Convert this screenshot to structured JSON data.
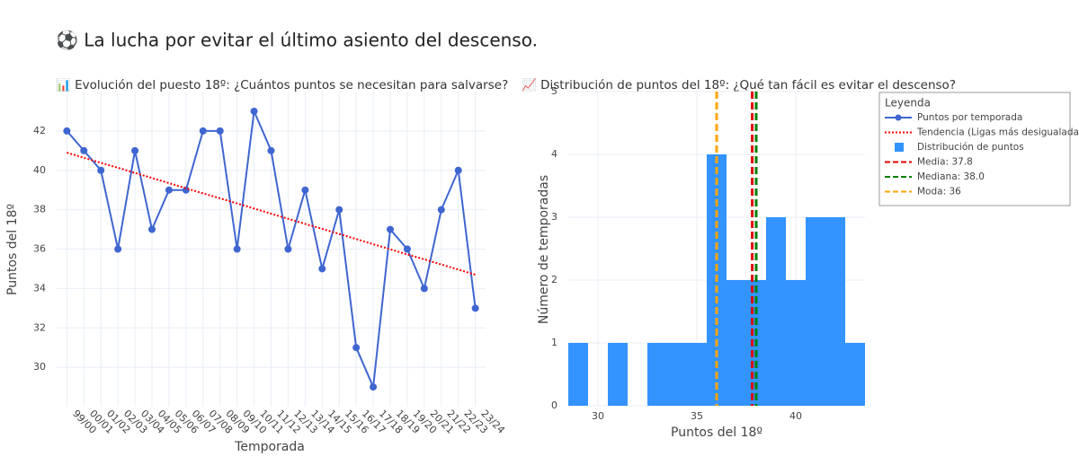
{
  "title": "⚽ La lucha por evitar el último asiento del descenso.",
  "legend_title": "Leyenda",
  "chart_data": [
    {
      "type": "line",
      "title": "📊 Evolución del puesto 18º: ¿Cuántos puntos se necesitan para salvarse?",
      "xlabel": "Temporada",
      "ylabel": "Puntos del 18º",
      "categories": [
        "99/00",
        "00/01",
        "01/02",
        "02/03",
        "03/04",
        "04/05",
        "05/06",
        "06/07",
        "07/08",
        "08/09",
        "09/10",
        "10/11",
        "11/12",
        "12/13",
        "13/14",
        "14/15",
        "15/16",
        "16/17",
        "17/18",
        "18/19",
        "19/20",
        "20/21",
        "21/22",
        "22/23",
        "23/24"
      ],
      "series": [
        {
          "name": "Puntos por temporada",
          "color": "#3f66d0",
          "values": [
            42,
            41,
            40,
            36,
            41,
            37,
            39,
            39,
            42,
            42,
            36,
            43,
            41,
            36,
            39,
            35,
            38,
            31,
            29,
            37,
            36,
            34,
            38,
            40,
            33
          ]
        },
        {
          "name": "Tendencia (Ligas más desigualadas)",
          "color": "#ff0000",
          "dash": "2,2",
          "values": [
            40.9,
            40.64,
            40.38,
            40.13,
            39.87,
            39.61,
            39.35,
            39.09,
            38.83,
            38.58,
            38.32,
            38.06,
            37.8,
            37.54,
            37.28,
            37.03,
            36.77,
            36.51,
            36.25,
            35.99,
            35.73,
            35.48,
            35.22,
            34.96,
            34.7
          ]
        }
      ],
      "ylim": [
        28,
        44
      ],
      "yticks": [
        30,
        32,
        34,
        36,
        38,
        40,
        42
      ],
      "grid": true
    },
    {
      "type": "histogram",
      "title": "📈 Distribución de puntos del 18º: ¿Qué tan fácil es evitar el descenso?",
      "xlabel": "Puntos del 18º",
      "ylabel": "Número de temporadas",
      "bins": [
        28.5,
        29.5,
        30.5,
        31.5,
        32.5,
        33.5,
        34.5,
        35.5,
        36.5,
        37.5,
        38.5,
        39.5,
        40.5,
        41.5,
        42.5,
        43.5
      ],
      "series": [
        {
          "name": "Distribución de puntos",
          "color": "#3393ff",
          "values": [
            1,
            0,
            1,
            0,
            1,
            1,
            1,
            4,
            2,
            2,
            3,
            2,
            3,
            3,
            1
          ]
        }
      ],
      "vlines": [
        {
          "name": "Media: 37.8",
          "value": 37.8,
          "color": "#e00000"
        },
        {
          "name": "Mediana: 38.0",
          "value": 38.0,
          "color": "#008000"
        },
        {
          "name": "Moda: 36",
          "value": 36,
          "color": "#ffa500"
        }
      ],
      "xlim": [
        28.5,
        43.5
      ],
      "xticks": [
        30,
        35,
        40
      ],
      "ylim": [
        0,
        5
      ],
      "yticks": [
        0,
        1,
        2,
        3,
        4,
        5
      ],
      "grid": true
    }
  ]
}
